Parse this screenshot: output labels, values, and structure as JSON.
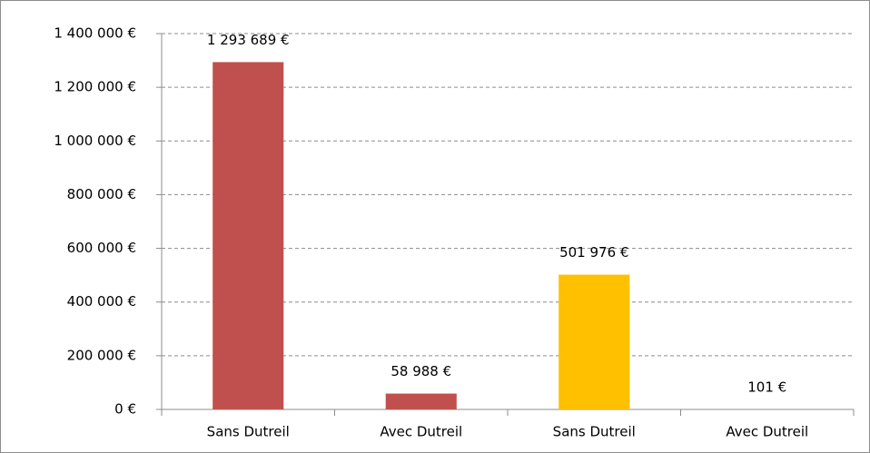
{
  "chart_data": {
    "type": "bar",
    "categories": [
      "Sans Dutreil",
      "Avec Dutreil",
      "Sans Dutreil",
      "Avec Dutreil"
    ],
    "values": [
      1293689,
      58988,
      501976,
      101
    ],
    "value_labels": [
      "1 293 689 €",
      "58 988 €",
      "501 976 €",
      "101 €"
    ],
    "colors": [
      "#c0504d",
      "#c0504d",
      "#ffc000",
      "#ffc000"
    ],
    "ylim": [
      0,
      1400000
    ],
    "yticks": [
      {
        "value": 0,
        "label": "0 €"
      },
      {
        "value": 200000,
        "label": "200 000 €"
      },
      {
        "value": 400000,
        "label": "400 000 €"
      },
      {
        "value": 600000,
        "label": "600 000 €"
      },
      {
        "value": 800000,
        "label": "800 000 €"
      },
      {
        "value": 1000000,
        "label": "1 000 000 €"
      },
      {
        "value": 1200000,
        "label": "1 200 000 €"
      },
      {
        "value": 1400000,
        "label": "1 400 000 €"
      }
    ],
    "grid": true
  }
}
